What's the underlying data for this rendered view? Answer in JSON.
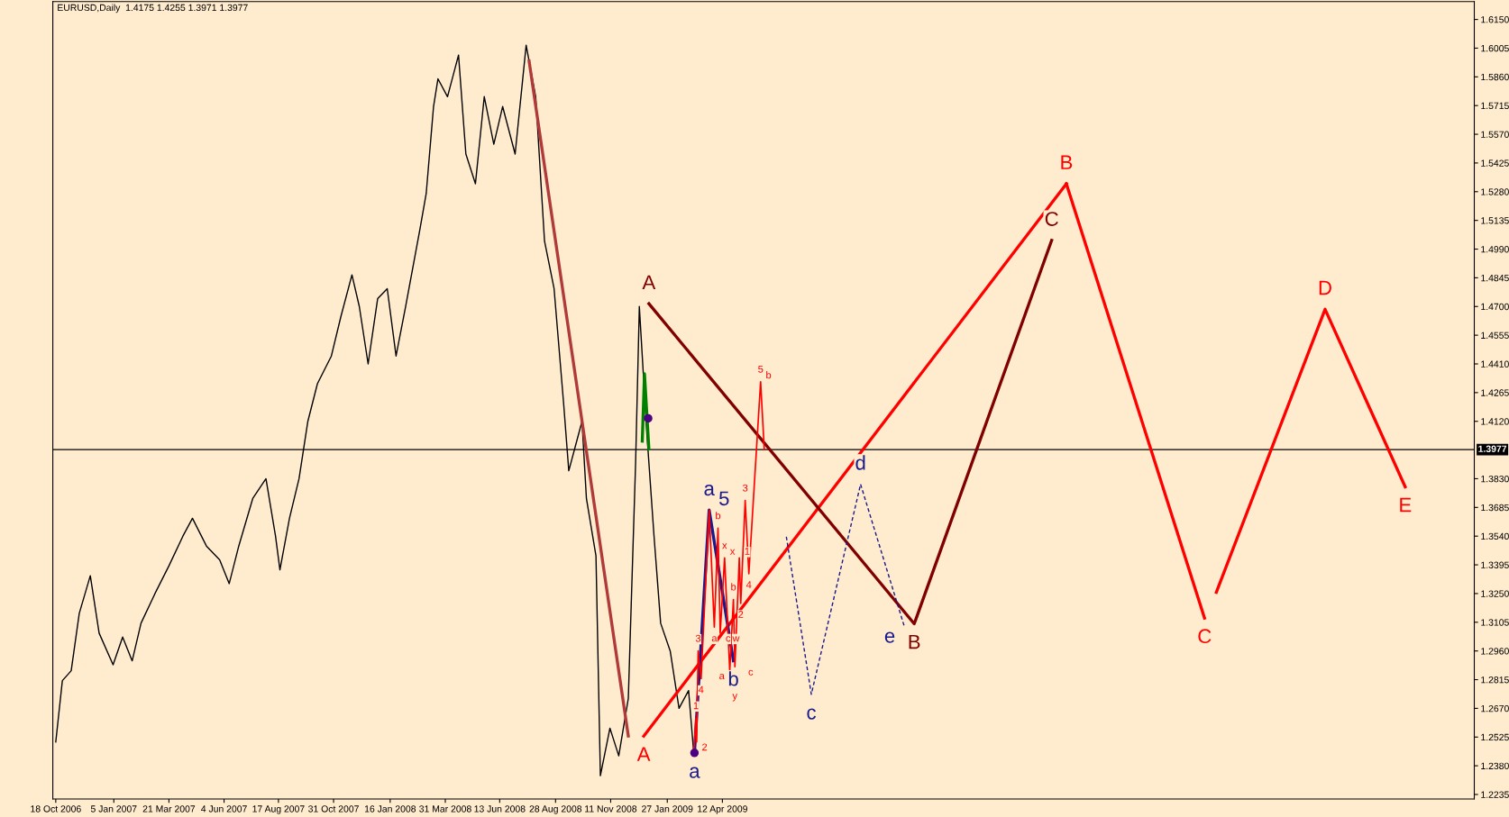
{
  "chart_data": {
    "type": "line",
    "title": "EURUSD,Daily  1.4175 1.4255 1.3971 1.3977",
    "xlim": [
      "2006-10-14",
      "2012-01-30"
    ],
    "xticks": [
      {
        "value": "2006-10-18",
        "label": "18 Oct 2006"
      },
      {
        "value": "2007-01-05",
        "label": "5 Jan 2007"
      },
      {
        "value": "2007-03-21",
        "label": "21 Mar 2007"
      },
      {
        "value": "2007-06-04",
        "label": "4 Jun 2007"
      },
      {
        "value": "2007-08-17",
        "label": "17 Aug 2007"
      },
      {
        "value": "2007-10-31",
        "label": "31 Oct 2007"
      },
      {
        "value": "2008-01-16",
        "label": "16 Jan 2008"
      },
      {
        "value": "2008-03-31",
        "label": "31 Mar 2008"
      },
      {
        "value": "2008-06-13",
        "label": "13 Jun 2008"
      },
      {
        "value": "2008-08-28",
        "label": "28 Aug 2008"
      },
      {
        "value": "2008-11-11",
        "label": "11 Nov 2008"
      },
      {
        "value": "2009-01-27",
        "label": "27 Jan 2009"
      },
      {
        "value": "2009-04-12",
        "label": "12 Apr 2009"
      }
    ],
    "ylim": [
      1.2212,
      1.624
    ],
    "yticks": [
      {
        "value": 1.2235,
        "label": "1.2235"
      },
      {
        "value": 1.238,
        "label": "1.2380"
      },
      {
        "value": 1.2525,
        "label": "1.2525"
      },
      {
        "value": 1.267,
        "label": "1.2670"
      },
      {
        "value": 1.2815,
        "label": "1.2815"
      },
      {
        "value": 1.296,
        "label": "1.2960"
      },
      {
        "value": 1.3105,
        "label": "1.3105"
      },
      {
        "value": 1.325,
        "label": "1.3250"
      },
      {
        "value": 1.3395,
        "label": "1.3395"
      },
      {
        "value": 1.354,
        "label": "1.3540"
      },
      {
        "value": 1.3685,
        "label": "1.3685"
      },
      {
        "value": 1.383,
        "label": "1.3830"
      },
      {
        "value": 1.412,
        "label": "1.4120"
      },
      {
        "value": 1.4265,
        "label": "1.4265"
      },
      {
        "value": 1.441,
        "label": "1.4410"
      },
      {
        "value": 1.4555,
        "label": "1.4555"
      },
      {
        "value": 1.47,
        "label": "1.4700"
      },
      {
        "value": 1.4845,
        "label": "1.4845"
      },
      {
        "value": 1.499,
        "label": "1.4990"
      },
      {
        "value": 1.5135,
        "label": "1.5135"
      },
      {
        "value": 1.528,
        "label": "1.5280"
      },
      {
        "value": 1.5425,
        "label": "1.5425"
      },
      {
        "value": 1.557,
        "label": "1.5570"
      },
      {
        "value": 1.5715,
        "label": "1.5715"
      },
      {
        "value": 1.586,
        "label": "1.5860"
      },
      {
        "value": 1.6005,
        "label": "1.6005"
      },
      {
        "value": 1.615,
        "label": "1.6150"
      }
    ],
    "grid": false,
    "legend": false,
    "ref_lines": [
      {
        "axis": "y",
        "value": 1.3977,
        "label": "1.3977",
        "color": "#000000"
      }
    ],
    "series": [
      {
        "color": "#000000",
        "x": [
          "2006-10-18",
          "2006-10-27",
          "2006-11-08",
          "2006-11-19",
          "2006-12-04",
          "2006-12-16",
          "2007-01-04",
          "2007-01-17",
          "2007-01-30",
          "2007-02-11",
          "2007-03-02",
          "2007-03-21",
          "2007-04-09",
          "2007-04-22",
          "2007-05-11",
          "2007-05-29",
          "2007-06-11",
          "2007-06-24",
          "2007-07-13",
          "2007-07-31",
          "2007-08-13",
          "2007-08-19",
          "2007-09-01",
          "2007-09-14",
          "2007-09-26",
          "2007-10-09",
          "2007-10-28",
          "2007-11-10",
          "2007-11-25",
          "2007-12-05",
          "2007-12-17",
          "2007-12-30",
          "2008-01-12",
          "2008-01-24",
          "2008-02-06",
          "2008-02-25",
          "2008-03-05",
          "2008-03-15",
          "2008-03-21",
          "2008-04-03",
          "2008-04-18",
          "2008-04-28",
          "2008-05-11",
          "2008-05-23",
          "2008-06-05",
          "2008-06-17",
          "2008-07-04",
          "2008-07-19",
          "2008-08-01",
          "2008-08-13",
          "2008-08-26",
          "2008-09-08",
          "2008-09-15",
          "2008-10-03",
          "2008-10-09",
          "2008-10-22",
          "2008-10-28",
          "2008-11-10",
          "2008-11-22",
          "2008-12-05",
          "2008-12-15",
          "2008-12-20",
          "2008-12-30",
          "2009-01-09",
          "2009-01-18",
          "2009-01-31",
          "2009-02-12",
          "2009-02-25",
          "2009-03-04"
        ],
        "values": [
          1.25,
          1.281,
          1.286,
          1.315,
          1.334,
          1.305,
          1.289,
          1.303,
          1.291,
          1.31,
          1.325,
          1.339,
          1.354,
          1.363,
          1.349,
          1.342,
          1.33,
          1.349,
          1.373,
          1.383,
          1.354,
          1.337,
          1.363,
          1.383,
          1.412,
          1.431,
          1.445,
          1.465,
          1.486,
          1.47,
          1.441,
          1.474,
          1.479,
          1.445,
          1.47,
          1.508,
          1.527,
          1.571,
          1.585,
          1.576,
          1.597,
          1.547,
          1.532,
          1.576,
          1.552,
          1.571,
          1.547,
          1.602,
          1.576,
          1.503,
          1.479,
          1.421,
          1.387,
          1.412,
          1.373,
          1.344,
          1.233,
          1.257,
          1.243,
          1.272,
          1.392,
          1.47,
          1.407,
          1.354,
          1.31,
          1.296,
          1.267,
          1.276,
          1.2445
        ]
      },
      {
        "color": "#b03a3a",
        "x": [
          "2008-07-23",
          "2008-12-05"
        ],
        "values": [
          1.594,
          1.253
        ]
      },
      {
        "color": "#ff0000",
        "x": [
          "2008-12-26",
          "2010-07-24"
        ],
        "values": [
          1.253,
          1.532
        ]
      },
      {
        "color": "#ff0000",
        "x": [
          "2010-07-24",
          "2011-01-28",
          "2011-02-05",
          "2011-02-13",
          "2011-07-11",
          "2011-10-28"
        ],
        "values": [
          1.532,
          1.3126,
          null,
          1.3256,
          1.4686,
          1.3789
        ]
      },
      {
        "color": "#800000",
        "x": [
          "2009-01-02",
          "2009-12-29",
          "2010-07-04"
        ],
        "values": [
          1.4714,
          1.3097,
          1.5034
        ]
      },
      {
        "color": "#1a1a8c",
        "x": [
          "2009-03-05",
          "2009-03-25",
          "2009-04-27"
        ],
        "values": [
          1.2445,
          1.3672,
          1.291
        ]
      },
      {
        "color": "#1a1a8c",
        "line_style": "dashed",
        "x": [
          "2009-07-08",
          "2009-08-11",
          "2009-10-17",
          "2009-12-16"
        ],
        "values": [
          1.3537,
          1.2741,
          1.3802,
          1.3078
        ]
      },
      {
        "color": "#008000",
        "x": [
          "2008-12-24",
          "2008-12-27",
          "2009-01-02"
        ],
        "values": [
          1.402,
          1.436,
          1.398
        ]
      },
      {
        "color": "#ff0000",
        "x": [
          "2009-03-04",
          "2009-03-07",
          "2009-03-08",
          "2009-03-10",
          "2009-03-14",
          "2009-03-25",
          "2009-04-01",
          "2009-04-06",
          "2009-04-09",
          "2009-04-15",
          "2009-04-22",
          "2009-04-27",
          "2009-04-29",
          "2009-05-05",
          "2009-05-07",
          "2009-05-13",
          "2009-05-18",
          "2009-06-03",
          "2009-06-08"
        ],
        "values": [
          1.2445,
          1.262,
          1.25,
          1.296,
          1.282,
          1.3672,
          1.308,
          1.358,
          1.305,
          1.343,
          1.286,
          1.322,
          1.288,
          1.343,
          1.32,
          1.372,
          1.335,
          1.432,
          1.3977
        ]
      },
      {
        "type": "scatter",
        "marker": "circle",
        "color": "#4b0082",
        "x": [
          "2009-03-05",
          "2009-01-01"
        ],
        "values": [
          1.2445,
          1.4135
        ]
      }
    ],
    "annotations": [
      {
        "text": "A",
        "x": "2009-01-02",
        "y": 1.4714
      },
      {
        "text": "A",
        "x": "2008-12-26",
        "y": 1.253
      },
      {
        "text": "B",
        "x": "2010-07-24",
        "y": 1.532
      },
      {
        "text": "C",
        "x": "2010-07-04",
        "y": 1.5034
      },
      {
        "text": "B",
        "x": "2009-12-29",
        "y": 1.3097
      },
      {
        "text": "C",
        "x": "2011-01-28",
        "y": 1.3126
      },
      {
        "text": "D",
        "x": "2011-07-11",
        "y": 1.4686
      },
      {
        "text": "E",
        "x": "2011-10-28",
        "y": 1.3789
      },
      {
        "text": "a",
        "x": "2009-03-05",
        "y": 1.2445
      },
      {
        "text": "a",
        "x": "2009-03-25",
        "y": 1.3672
      },
      {
        "text": "b",
        "x": "2009-04-27",
        "y": 1.291
      },
      {
        "text": "c",
        "x": "2009-08-11",
        "y": 1.2741
      },
      {
        "text": "d",
        "x": "2009-10-17",
        "y": 1.3802
      },
      {
        "text": "e",
        "x": "2009-12-16",
        "y": 1.3078
      },
      {
        "text": "1",
        "x": "2009-03-07",
        "y": 1.262
      },
      {
        "text": "2",
        "x": "2009-03-08",
        "y": 1.25
      },
      {
        "text": "3",
        "x": "2009-03-10",
        "y": 1.296
      },
      {
        "text": "4",
        "x": "2009-03-14",
        "y": 1.282
      },
      {
        "text": "5",
        "x": "2009-03-25",
        "y": 1.3672
      },
      {
        "text": "a",
        "x": "2009-04-01",
        "y": 1.308
      },
      {
        "text": "b",
        "x": "2009-04-06",
        "y": 1.358
      },
      {
        "text": "c",
        "x": "2009-04-09",
        "y": 1.305
      },
      {
        "text": "w",
        "x": "2009-04-09",
        "y": 1.305
      },
      {
        "text": "x",
        "x": "2009-04-15",
        "y": 1.343
      },
      {
        "text": "x",
        "x": "2009-04-15",
        "y": 1.343
      },
      {
        "text": "a",
        "x": "2009-04-22",
        "y": 1.286
      },
      {
        "text": "b",
        "x": "2009-04-27",
        "y": 1.322
      },
      {
        "text": "c",
        "x": "2009-04-29",
        "y": 1.288
      },
      {
        "text": "y",
        "x": "2009-04-29",
        "y": 1.288
      },
      {
        "text": "1",
        "x": "2009-05-05",
        "y": 1.343
      },
      {
        "text": "2",
        "x": "2009-05-07",
        "y": 1.32
      },
      {
        "text": "3",
        "x": "2009-05-13",
        "y": 1.372
      },
      {
        "text": "4",
        "x": "2009-05-18",
        "y": 1.335
      },
      {
        "text": "5",
        "x": "2009-06-03",
        "y": 1.432
      },
      {
        "text": "b",
        "x": "2009-06-03",
        "y": 1.432
      }
    ]
  }
}
